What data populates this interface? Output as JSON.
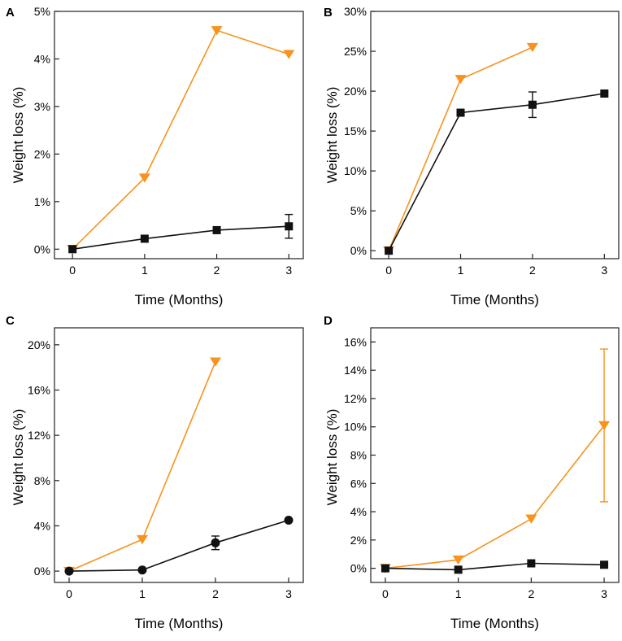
{
  "figure": {
    "colors": {
      "orange": "#f7931e",
      "black": "#111111"
    },
    "panels": [
      {
        "label": "A"
      },
      {
        "label": "B"
      },
      {
        "label": "C"
      },
      {
        "label": "D"
      }
    ]
  },
  "chart_data": [
    {
      "type": "line",
      "panel": "A",
      "xlabel": "Time (Months)",
      "ylabel": "Weight loss (%)",
      "x_ticks": [
        "0",
        "1",
        "2",
        "3"
      ],
      "y_ticks": [
        "0%",
        "1%",
        "2%",
        "3%",
        "4%",
        "5%"
      ],
      "xlim": [
        -0.25,
        3.2
      ],
      "ylim": [
        -0.2,
        5
      ],
      "series": [
        {
          "name": "orange",
          "color": "#f7931e",
          "marker": "triangle-down",
          "x": [
            0,
            1,
            2,
            3
          ],
          "y": [
            0,
            1.5,
            4.6,
            4.1
          ],
          "err": [
            0,
            0,
            0,
            0
          ]
        },
        {
          "name": "black",
          "color": "#111111",
          "marker": "square",
          "x": [
            0,
            1,
            2,
            3
          ],
          "y": [
            0,
            0.22,
            0.4,
            0.48
          ],
          "err": [
            0,
            0,
            0,
            0.25
          ]
        }
      ]
    },
    {
      "type": "line",
      "panel": "B",
      "xlabel": "Time (Months)",
      "ylabel": "Weight loss (%)",
      "x_ticks": [
        "0",
        "1",
        "2",
        "3"
      ],
      "y_ticks": [
        "0%",
        "5%",
        "10%",
        "15%",
        "20%",
        "25%",
        "30%"
      ],
      "xlim": [
        -0.25,
        3.2
      ],
      "ylim": [
        -1,
        30
      ],
      "series": [
        {
          "name": "orange",
          "color": "#f7931e",
          "marker": "triangle-down",
          "x": [
            0,
            1,
            2
          ],
          "y": [
            0,
            21.5,
            25.5
          ],
          "err": [
            0,
            0,
            0
          ]
        },
        {
          "name": "black",
          "color": "#111111",
          "marker": "square",
          "x": [
            0,
            1,
            2,
            3
          ],
          "y": [
            0,
            17.3,
            18.3,
            19.7
          ],
          "err": [
            0,
            0,
            1.6,
            0
          ]
        }
      ]
    },
    {
      "type": "line",
      "panel": "C",
      "xlabel": "Time (Months)",
      "ylabel": "Weight loss (%)",
      "x_ticks": [
        "0",
        "1",
        "2",
        "3"
      ],
      "y_ticks": [
        "0%",
        "4%",
        "8%",
        "12%",
        "16%",
        "20%"
      ],
      "xlim": [
        -0.2,
        3.2
      ],
      "ylim": [
        -1,
        21.5
      ],
      "series": [
        {
          "name": "orange",
          "color": "#f7931e",
          "marker": "triangle-down",
          "x": [
            0,
            1,
            2
          ],
          "y": [
            0,
            2.8,
            18.5
          ],
          "err": [
            0,
            0,
            0
          ]
        },
        {
          "name": "black",
          "color": "#111111",
          "marker": "circle",
          "x": [
            0,
            1,
            2,
            3
          ],
          "y": [
            0,
            0.1,
            2.5,
            4.5
          ],
          "err": [
            0,
            0,
            0.6,
            0
          ]
        }
      ]
    },
    {
      "type": "line",
      "panel": "D",
      "xlabel": "Time (Months)",
      "ylabel": "Weight loss (%)",
      "x_ticks": [
        "0",
        "1",
        "2",
        "3"
      ],
      "y_ticks": [
        "0%",
        "2%",
        "4%",
        "6%",
        "8%",
        "10%",
        "12%",
        "14%",
        "16%"
      ],
      "xlim": [
        -0.2,
        3.2
      ],
      "ylim": [
        -1,
        17
      ],
      "series": [
        {
          "name": "orange",
          "color": "#f7931e",
          "marker": "triangle-down",
          "x": [
            0,
            1,
            2,
            3
          ],
          "y": [
            0,
            0.6,
            3.5,
            10.1
          ],
          "err": [
            0,
            0,
            0,
            5.4
          ]
        },
        {
          "name": "black",
          "color": "#111111",
          "marker": "square",
          "x": [
            0,
            1,
            2,
            3
          ],
          "y": [
            0,
            -0.1,
            0.35,
            0.25
          ],
          "err": [
            0,
            0,
            0,
            0
          ]
        }
      ]
    }
  ]
}
